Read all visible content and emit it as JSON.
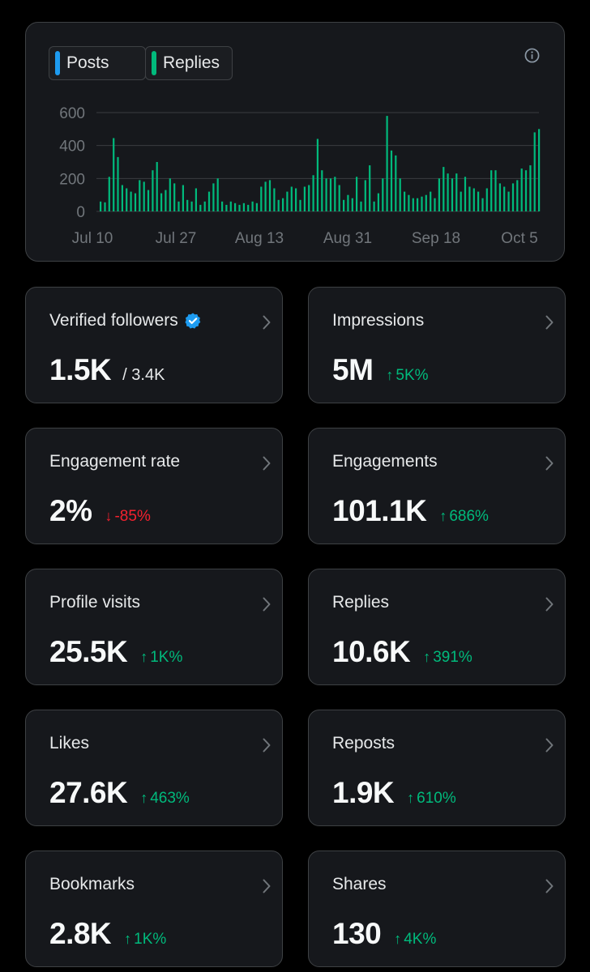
{
  "legend": {
    "posts": {
      "label": "Posts",
      "color": "#1d9bf0"
    },
    "replies": {
      "label": "Replies",
      "color": "#00ba7c"
    }
  },
  "info_icon": "info-icon",
  "chart_data": {
    "type": "bar",
    "y_ticks": [
      "600",
      "400",
      "200",
      "0"
    ],
    "x_ticks": [
      "Jul 10",
      "Jul 27",
      "Aug 13",
      "Aug 31",
      "Sep 18",
      "Oct 5"
    ],
    "ylim": [
      0,
      600
    ],
    "grid": true,
    "series": [
      {
        "name": "Replies",
        "color": "#00ba7c",
        "values": [
          60,
          55,
          210,
          445,
          330,
          160,
          140,
          120,
          110,
          190,
          180,
          130,
          250,
          300,
          110,
          130,
          200,
          170,
          60,
          160,
          70,
          60,
          140,
          40,
          60,
          120,
          170,
          200,
          60,
          40,
          60,
          50,
          40,
          50,
          40,
          60,
          50,
          150,
          180,
          190,
          140,
          70,
          80,
          120,
          150,
          140,
          70,
          150,
          160,
          220,
          440,
          250,
          200,
          200,
          210,
          160,
          70,
          100,
          80,
          210,
          60,
          190,
          280,
          60,
          110,
          200,
          580,
          370,
          340,
          200,
          120,
          100,
          80,
          80,
          90,
          100,
          120,
          80,
          200,
          270,
          230,
          200,
          230,
          120,
          210,
          150,
          140,
          120,
          80,
          140,
          250,
          250,
          170,
          150,
          120,
          170,
          190,
          260,
          250,
          280,
          480,
          500
        ]
      }
    ]
  },
  "cards": [
    {
      "label": "Verified followers",
      "value": "1.5K",
      "sub": "/ 3.4K"
    },
    {
      "label": "Impressions",
      "value": "5M",
      "delta": "5K%",
      "dir": "up"
    },
    {
      "label": "Engagement rate",
      "value": "2%",
      "delta": "-85%",
      "dir": "down"
    },
    {
      "label": "Engagements",
      "value": "101.1K",
      "delta": "686%",
      "dir": "up"
    },
    {
      "label": "Profile visits",
      "value": "25.5K",
      "delta": "1K%",
      "dir": "up"
    },
    {
      "label": "Replies",
      "value": "10.6K",
      "delta": "391%",
      "dir": "up"
    },
    {
      "label": "Likes",
      "value": "27.6K",
      "delta": "463%",
      "dir": "up"
    },
    {
      "label": "Reposts",
      "value": "1.9K",
      "delta": "610%",
      "dir": "up"
    },
    {
      "label": "Bookmarks",
      "value": "2.8K",
      "delta": "1K%",
      "dir": "up"
    },
    {
      "label": "Shares",
      "value": "130",
      "delta": "4K%",
      "dir": "up"
    }
  ],
  "arrows": {
    "up": "↑",
    "down": "↓"
  },
  "verified_badge_color": "#1d9bf0"
}
